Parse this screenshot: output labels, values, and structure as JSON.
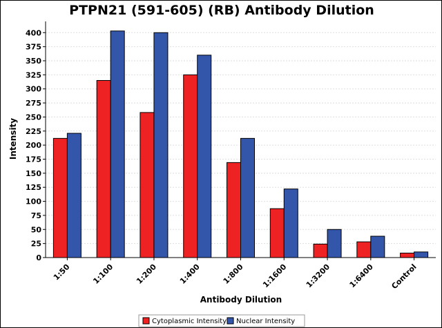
{
  "chart_data": {
    "type": "bar",
    "title": "PTPN21 (591-605) (RB) Antibody Dilution",
    "xlabel": "Antibody Dilution",
    "ylabel": "Intensity",
    "ylim": [
      0,
      420
    ],
    "yticks": [
      0,
      25,
      50,
      75,
      100,
      125,
      150,
      175,
      200,
      225,
      250,
      275,
      300,
      325,
      350,
      375,
      400
    ],
    "categories": [
      "1:50",
      "1:100",
      "1:200",
      "1:400",
      "1:800",
      "1:1600",
      "1:3200",
      "1:6400",
      "Control"
    ],
    "series": [
      {
        "name": "Cytoplasmic Intensity",
        "color": "#ee2222",
        "values": [
          212,
          315,
          258,
          325,
          169,
          87,
          24,
          28,
          8
        ]
      },
      {
        "name": "Nuclear Intensity",
        "color": "#3355aa",
        "values": [
          221,
          403,
          400,
          360,
          212,
          122,
          50,
          38,
          10
        ]
      }
    ],
    "grid": true,
    "legend_position": "bottom"
  }
}
